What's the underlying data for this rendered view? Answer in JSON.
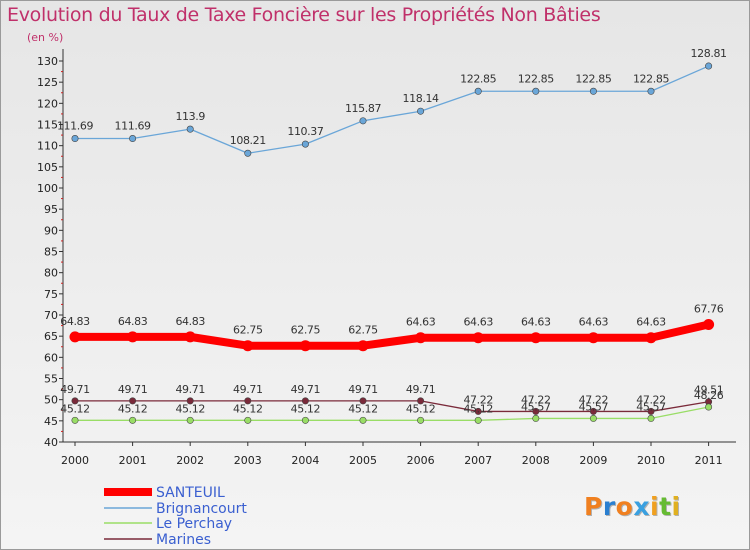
{
  "chart_data": {
    "type": "line",
    "title": "Evolution du Taux de Taxe Foncière sur les Propriétés Non Bâties",
    "subtitle": "(en %)",
    "xlabel": "",
    "ylabel": "",
    "x": [
      "2000",
      "2001",
      "2002",
      "2003",
      "2004",
      "2005",
      "2006",
      "2007",
      "2008",
      "2009",
      "2010",
      "2011"
    ],
    "ylim": [
      40,
      130
    ],
    "yticks": [
      "40",
      "45",
      "50",
      "55",
      "60",
      "65",
      "70",
      "75",
      "80",
      "85",
      "90",
      "95",
      "100",
      "105",
      "110",
      "115",
      "120",
      "125",
      "130"
    ],
    "grid": false,
    "legend_position": "bottom-left",
    "series": [
      {
        "name": "SANTEUIL",
        "color": "#ff0000",
        "values": [
          64.83,
          64.83,
          64.83,
          62.75,
          62.75,
          62.75,
          64.63,
          64.63,
          64.63,
          64.63,
          64.63,
          67.76
        ],
        "labels": [
          "64.83",
          "64.83",
          "64.83",
          "62.75",
          "62.75",
          "62.75",
          "64.63",
          "64.63",
          "64.63",
          "64.63",
          "64.63",
          "67.76"
        ]
      },
      {
        "name": "Brignancourt",
        "color": "#6aa6d8",
        "values": [
          111.69,
          111.69,
          113.9,
          108.21,
          110.37,
          115.87,
          118.14,
          122.85,
          122.85,
          122.85,
          122.85,
          128.81
        ],
        "labels": [
          "111.69",
          "111.69",
          "113.9",
          "108.21",
          "110.37",
          "115.87",
          "118.14",
          "122.85",
          "122.85",
          "122.85",
          "122.85",
          "128.81"
        ]
      },
      {
        "name": "Le Perchay",
        "color": "#99dd66",
        "values": [
          45.12,
          45.12,
          45.12,
          45.12,
          45.12,
          45.12,
          45.12,
          45.12,
          45.57,
          45.57,
          45.57,
          48.26
        ],
        "labels": [
          "45.12",
          "45.12",
          "45.12",
          "45.12",
          "45.12",
          "45.12",
          "45.12",
          "45.12",
          "45.57",
          "45.57",
          "45.57",
          "48.26"
        ]
      },
      {
        "name": "Marines",
        "color": "#7a2a3a",
        "values": [
          49.71,
          49.71,
          49.71,
          49.71,
          49.71,
          49.71,
          49.71,
          47.22,
          47.22,
          47.22,
          47.22,
          49.51
        ],
        "labels": [
          "49.71",
          "49.71",
          "49.71",
          "49.71",
          "49.71",
          "49.71",
          "49.71",
          "47.22",
          "47.22",
          "47.22",
          "47.22",
          "49.51"
        ]
      }
    ]
  },
  "logo": {
    "text": "Proxiti"
  }
}
